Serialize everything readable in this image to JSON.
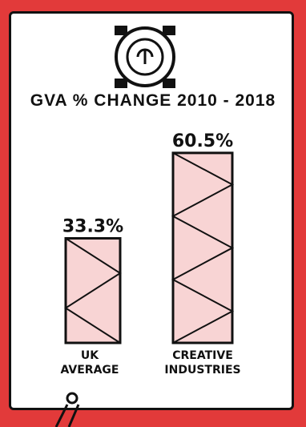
{
  "chart_data": {
    "type": "bar",
    "title": "GVA % CHANGE 2010 - 2018",
    "categories": [
      "UK AVERAGE",
      "CREATIVE INDUSTRIES"
    ],
    "category_lines": [
      [
        "UK",
        "AVERAGE"
      ],
      [
        "CREATIVE",
        "INDUSTRIES"
      ]
    ],
    "values": [
      33.3,
      60.5
    ],
    "value_labels": [
      "33.3%",
      "60.5%"
    ],
    "ylim": [
      0,
      62
    ],
    "grid": false,
    "legend": "none"
  },
  "icon": "bell-icon",
  "colors": {
    "background": "#e23a3a",
    "card": "#ffffff",
    "ink": "#111111",
    "bar_fill": "#f8d4d4"
  }
}
